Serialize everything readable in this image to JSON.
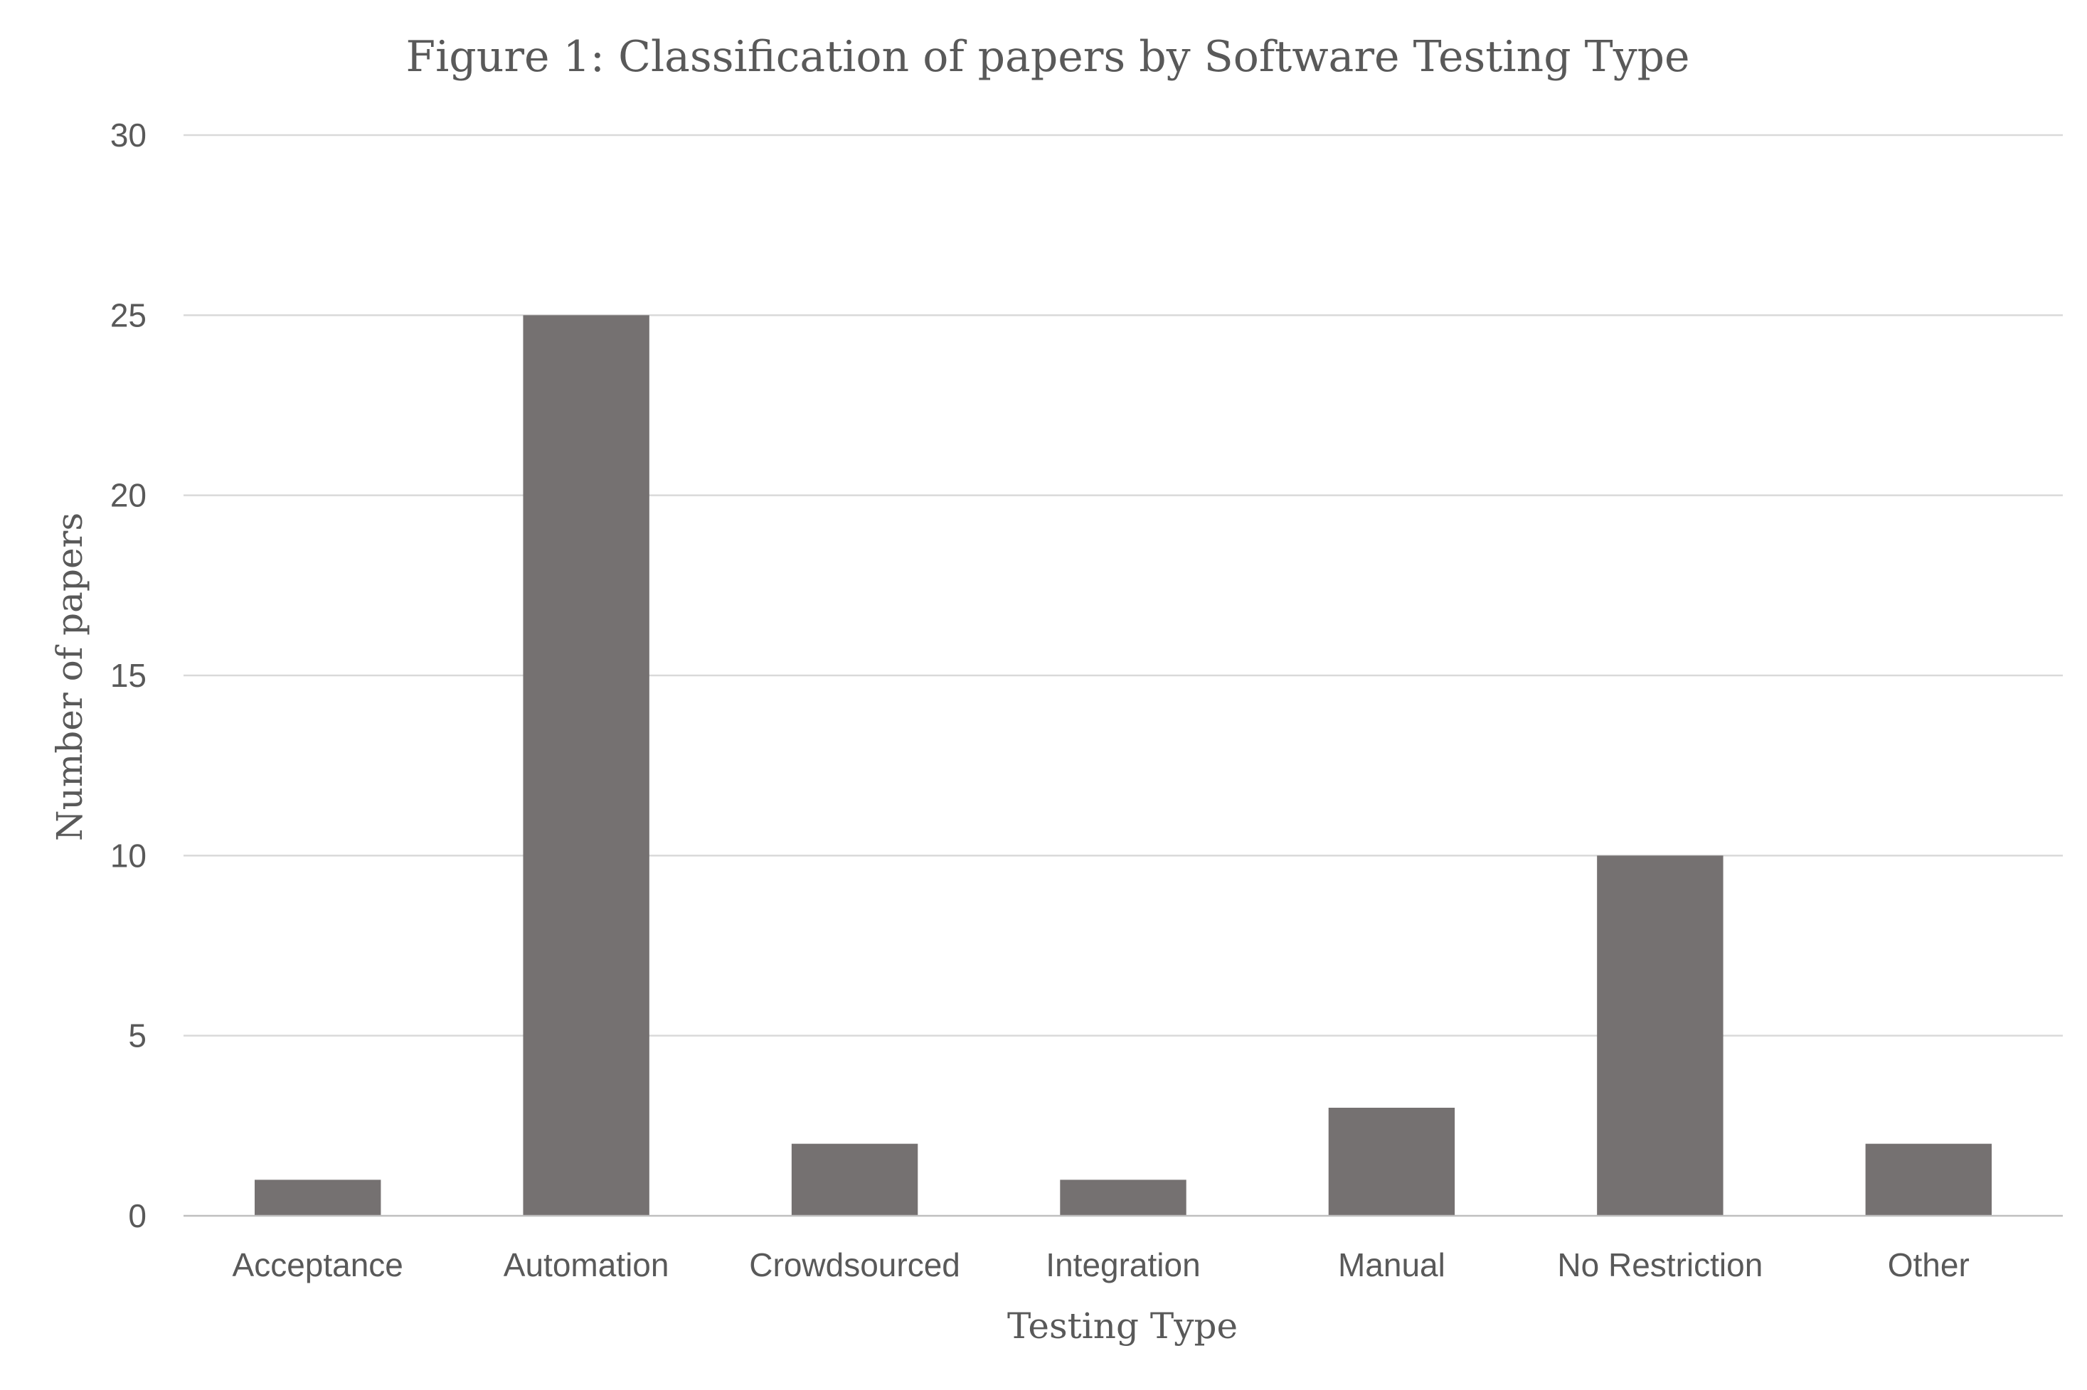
{
  "chart_data": {
    "type": "bar",
    "title": "Figure 1: Classification of papers by Software Testing Type",
    "xlabel": "Testing Type",
    "ylabel": "Number of papers",
    "categories": [
      "Acceptance",
      "Automation",
      "Crowdsourced",
      "Integration",
      "Manual",
      "No Restriction",
      "Other"
    ],
    "values": [
      1,
      25,
      2,
      1,
      3,
      10,
      2
    ],
    "ylim": [
      0,
      30
    ],
    "yticks": [
      "0",
      "5",
      "10",
      "15",
      "20",
      "25",
      "30"
    ],
    "grid": true,
    "legend": "none",
    "bar_color": "#757171"
  }
}
